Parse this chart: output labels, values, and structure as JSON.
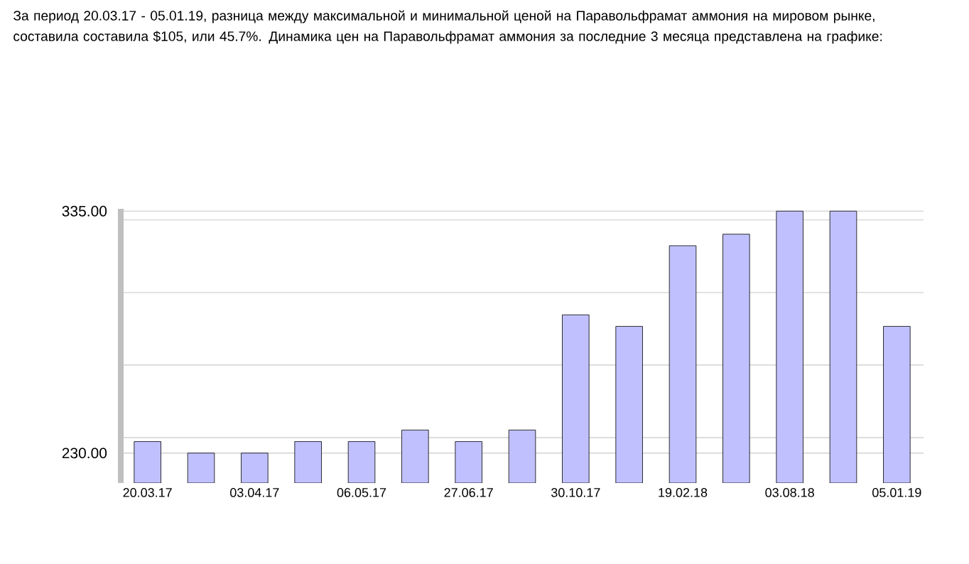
{
  "chart_data": {
    "type": "bar",
    "title": "За период 20.03.17 - 05.01.19, разница между максимальной и минимальной ценой на Паравольфрамат аммония на мировом рынке, составила составила $105, или 45.7%. Динамика цен на Паравольфрамат аммония за последние 3 месяца представлена на графике:",
    "categories": [
      "20.03.17",
      null,
      "03.04.17",
      null,
      "06.05.17",
      null,
      "27.06.17",
      null,
      "30.10.17",
      null,
      "19.02.18",
      null,
      "03.08.18",
      null,
      "05.01.19"
    ],
    "values": [
      235,
      230,
      230,
      235,
      235,
      240,
      235,
      240,
      290,
      285,
      320,
      325,
      335,
      335,
      285
    ],
    "color": "#c0c0ff",
    "ylim": [
      217,
      336
    ],
    "yticks": [
      {
        "value": 230,
        "label": "230.00"
      },
      {
        "value": 236.7,
        "label": null
      },
      {
        "value": 268.2,
        "label": null
      },
      {
        "value": 299.7,
        "label": null
      },
      {
        "value": 331.2,
        "label": null
      },
      {
        "value": 335,
        "label": "335.00"
      }
    ],
    "grid": "y"
  }
}
